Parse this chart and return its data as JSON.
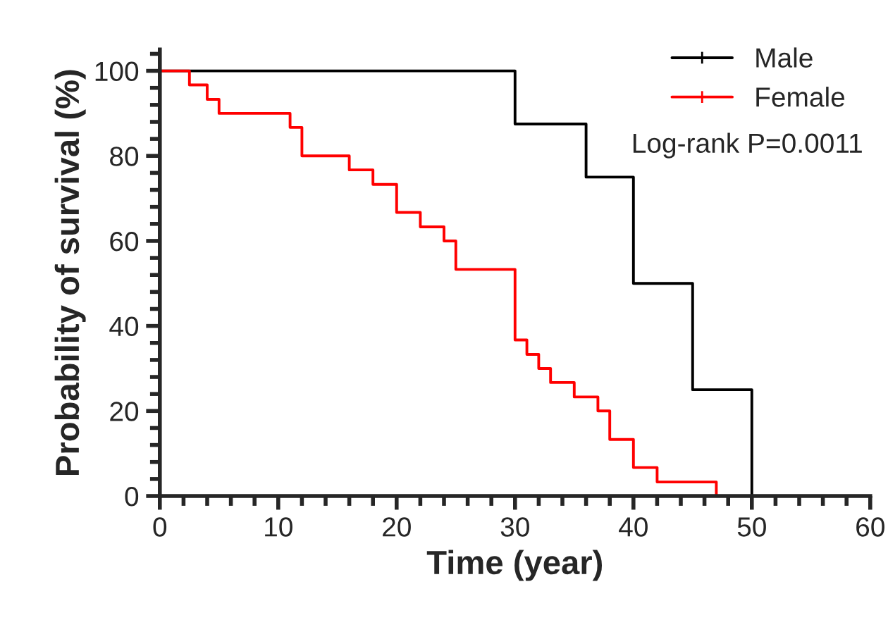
{
  "chart_data": {
    "type": "step",
    "xlabel": "Time (year)",
    "ylabel": "Probability of survival (%)",
    "xlim": [
      0,
      60
    ],
    "xticks": [
      0,
      10,
      20,
      30,
      40,
      50,
      60
    ],
    "ylim": [
      0,
      105
    ],
    "yticks": [
      0,
      20,
      40,
      60,
      80,
      100
    ],
    "series": [
      {
        "name": "Male",
        "color": "#000000",
        "x": [
          0,
          30,
          36,
          40,
          45,
          50
        ],
        "values": [
          100,
          87.5,
          75,
          50,
          25,
          0
        ]
      },
      {
        "name": "Female",
        "color": "#ff0000",
        "x": [
          0,
          2.5,
          4,
          5,
          11,
          12,
          16,
          18,
          20,
          22,
          24,
          25,
          30,
          31,
          32,
          33,
          35,
          37,
          38,
          40,
          42,
          47
        ],
        "values": [
          100,
          96.7,
          93.3,
          90,
          86.7,
          80,
          76.7,
          73.3,
          66.7,
          63.3,
          60,
          53.3,
          36.7,
          33.3,
          30,
          26.7,
          23.3,
          20,
          13.3,
          6.7,
          3.3,
          0
        ]
      }
    ],
    "annotations": [
      "Log-rank P=0.0011"
    ],
    "legend": "top right",
    "grid": false
  }
}
